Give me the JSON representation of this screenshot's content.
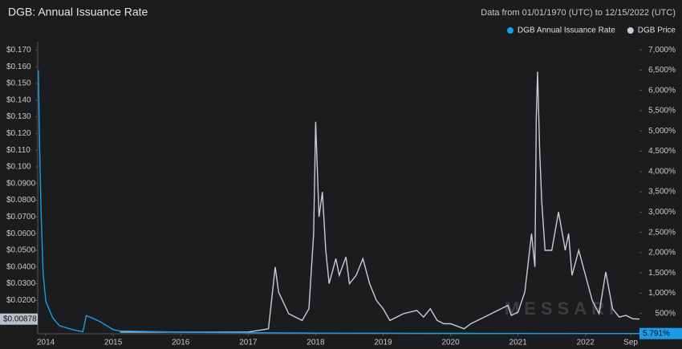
{
  "chart_data": {
    "type": "line",
    "title": "DGB: Annual Issuance Rate",
    "subtitle": "Data from 01/01/1970 (UTC) to 12/15/2022 (UTC)",
    "watermark": "MESSARI",
    "legend_position": "top-right",
    "xlim": [
      2013.88,
      2022.8
    ],
    "xticks": [
      2014,
      2015,
      2016,
      2017,
      2018,
      2019,
      2020,
      2021,
      2022,
      {
        "value": 2022.67,
        "label": "Sep"
      }
    ],
    "ylim": [
      0,
      0.175
    ],
    "yticks": [
      {
        "value": 0.17,
        "label": "$0.170"
      },
      {
        "value": 0.16,
        "label": "$0.160"
      },
      {
        "value": 0.15,
        "label": "$0.150"
      },
      {
        "value": 0.14,
        "label": "$0.140"
      },
      {
        "value": 0.13,
        "label": "$0.130"
      },
      {
        "value": 0.12,
        "label": "$0.120"
      },
      {
        "value": 0.11,
        "label": "$0.110"
      },
      {
        "value": 0.1,
        "label": "$0.100"
      },
      {
        "value": 0.09,
        "label": "$0.0900"
      },
      {
        "value": 0.08,
        "label": "$0.0800"
      },
      {
        "value": 0.07,
        "label": "$0.0700"
      },
      {
        "value": 0.06,
        "label": "$0.0600"
      },
      {
        "value": 0.05,
        "label": "$0.0500"
      },
      {
        "value": 0.04,
        "label": "$0.0400"
      },
      {
        "value": 0.03,
        "label": "$0.0300"
      },
      {
        "value": 0.02,
        "label": "$0.0200"
      }
    ],
    "y2lim": [
      0,
      7200
    ],
    "y2ticks": [
      {
        "value": 7000,
        "label": "7,000%"
      },
      {
        "value": 6500,
        "label": "6,500%"
      },
      {
        "value": 6000,
        "label": "6,000%"
      },
      {
        "value": 5500,
        "label": "5,500%"
      },
      {
        "value": 5000,
        "label": "5,000%"
      },
      {
        "value": 4500,
        "label": "4,500%"
      },
      {
        "value": 4000,
        "label": "4,000%"
      },
      {
        "value": 3500,
        "label": "3,500%"
      },
      {
        "value": 3000,
        "label": "3,000%"
      },
      {
        "value": 2500,
        "label": "2,500%"
      },
      {
        "value": 2000,
        "label": "2,000%"
      },
      {
        "value": 1500,
        "label": "1,500%"
      },
      {
        "value": 1000,
        "label": "1,000%"
      },
      {
        "value": 500,
        "label": "500%"
      }
    ],
    "series": [
      {
        "name": "DGB Annual Issuance Rate",
        "color": "#1c9be8",
        "axis": "y2",
        "current_label": {
          "value": 5.791,
          "label": "5.791%"
        },
        "x": [
          2013.89,
          2013.91,
          2013.93,
          2013.96,
          2014.0,
          2014.1,
          2014.2,
          2014.4,
          2014.55,
          2014.6,
          2014.7,
          2014.8,
          2014.9,
          2015.0,
          2015.1,
          2016.0,
          2017.0,
          2018.0,
          2020.0,
          2022.8
        ],
        "values": [
          6500,
          4500,
          3000,
          1500,
          800,
          400,
          200,
          100,
          50,
          450,
          380,
          300,
          200,
          100,
          70,
          40,
          25,
          15,
          10,
          5.791
        ]
      },
      {
        "name": "DGB Price",
        "color": "#c9ccd3",
        "axis": "y",
        "current_label": {
          "value": 0.00878,
          "label": "$0.00878"
        },
        "x": [
          2015.1,
          2016.0,
          2017.0,
          2017.3,
          2017.4,
          2017.45,
          2017.6,
          2017.8,
          2017.9,
          2017.97,
          2018.0,
          2018.05,
          2018.1,
          2018.15,
          2018.2,
          2018.3,
          2018.35,
          2018.45,
          2018.5,
          2018.6,
          2018.7,
          2018.8,
          2018.9,
          2019.0,
          2019.1,
          2019.3,
          2019.5,
          2019.6,
          2019.7,
          2019.8,
          2019.9,
          2020.0,
          2020.2,
          2020.3,
          2020.5,
          2020.7,
          2020.85,
          2020.9,
          2021.0,
          2021.1,
          2021.2,
          2021.25,
          2021.27,
          2021.29,
          2021.32,
          2021.35,
          2021.4,
          2021.5,
          2021.6,
          2021.7,
          2021.75,
          2021.8,
          2021.9,
          2022.0,
          2022.1,
          2022.2,
          2022.3,
          2022.4,
          2022.5,
          2022.6,
          2022.7,
          2022.8
        ],
        "values": [
          0.001,
          0.001,
          0.001,
          0.003,
          0.04,
          0.025,
          0.012,
          0.008,
          0.015,
          0.06,
          0.127,
          0.07,
          0.085,
          0.05,
          0.03,
          0.045,
          0.035,
          0.046,
          0.03,
          0.035,
          0.045,
          0.03,
          0.02,
          0.015,
          0.008,
          0.012,
          0.014,
          0.01,
          0.015,
          0.008,
          0.006,
          0.006,
          0.003,
          0.006,
          0.01,
          0.014,
          0.017,
          0.011,
          0.013,
          0.025,
          0.06,
          0.04,
          0.13,
          0.157,
          0.11,
          0.08,
          0.05,
          0.05,
          0.073,
          0.05,
          0.06,
          0.035,
          0.05,
          0.035,
          0.02,
          0.012,
          0.037,
          0.015,
          0.01,
          0.011,
          0.009,
          0.00878
        ]
      }
    ]
  }
}
